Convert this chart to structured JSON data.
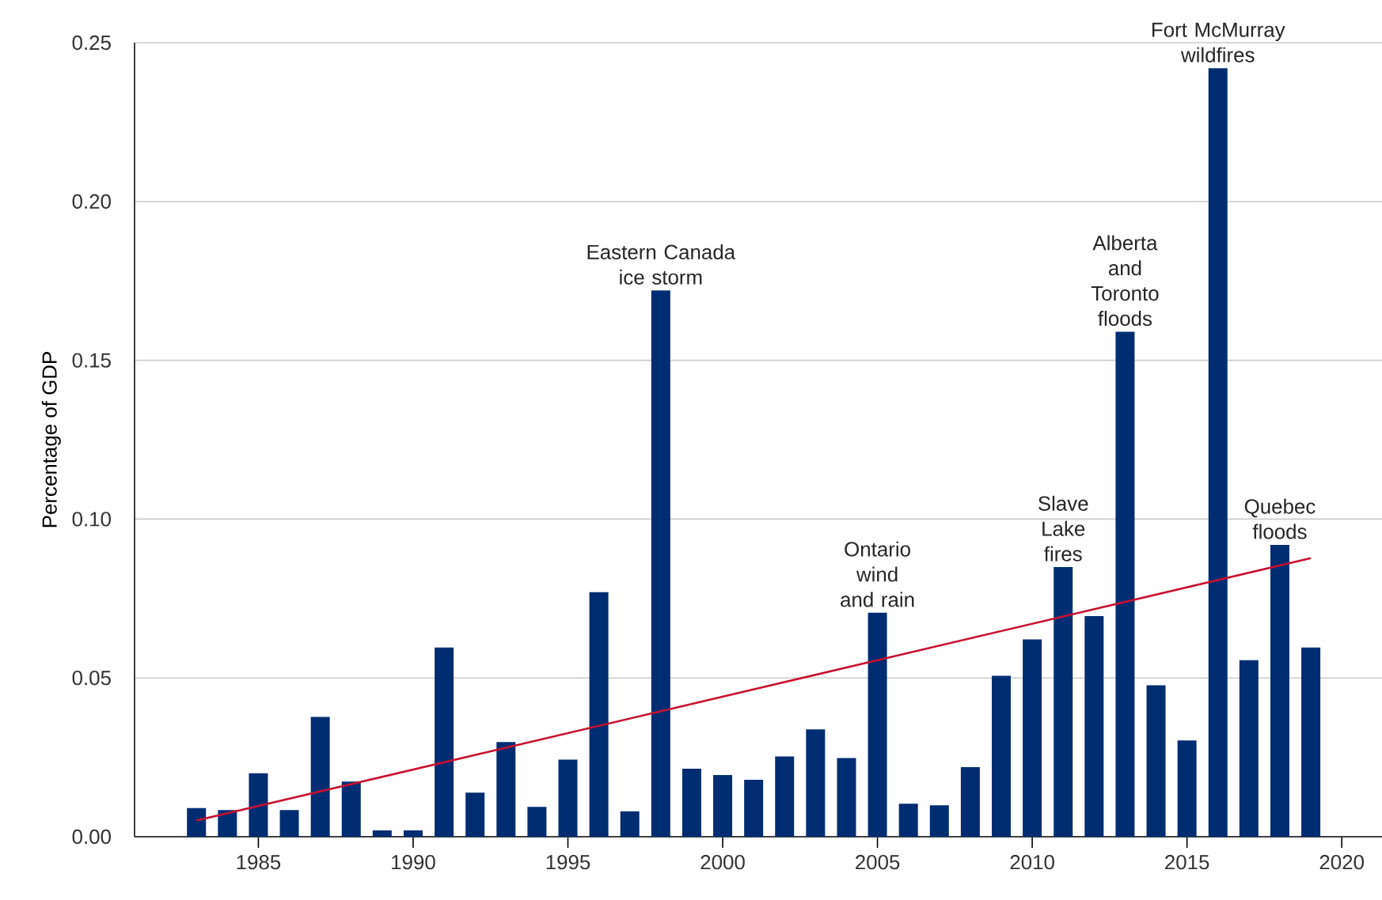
{
  "chart_data": {
    "type": "bar",
    "ylabel": "Percentage of GDP",
    "x": [
      1983,
      1984,
      1985,
      1986,
      1987,
      1988,
      1989,
      1990,
      1991,
      1992,
      1993,
      1994,
      1995,
      1996,
      1997,
      1998,
      1999,
      2000,
      2001,
      2002,
      2003,
      2004,
      2005,
      2006,
      2007,
      2008,
      2009,
      2010,
      2011,
      2012,
      2013,
      2014,
      2015,
      2016,
      2017,
      2018,
      2019
    ],
    "series": [
      {
        "color": "#002d72",
        "values": [
          0.009,
          0.0084,
          0.02,
          0.0084,
          0.0377,
          0.0174,
          0.002,
          0.002,
          0.0596,
          0.0139,
          0.0298,
          0.0094,
          0.0243,
          0.077,
          0.008,
          0.172,
          0.0214,
          0.0194,
          0.0179,
          0.0253,
          0.0338,
          0.0248,
          0.0705,
          0.0104,
          0.0099,
          0.0219,
          0.0507,
          0.0621,
          0.0849,
          0.0695,
          0.159,
          0.0477,
          0.0303,
          0.242,
          0.0556,
          0.0919,
          0.0596
        ]
      },
      {
        "type": "line",
        "color": "#c8102e",
        "x": [
          1983,
          2019
        ],
        "values": [
          0.0051,
          0.0877
        ]
      }
    ],
    "xlim": [
      1981,
      2021.3
    ],
    "xticks": [
      1985,
      1990,
      1995,
      2000,
      2005,
      2010,
      2015,
      2020
    ],
    "ylim": [
      0,
      0.25
    ],
    "yticks": [
      {
        "value": 0,
        "label": "0.00"
      },
      {
        "value": 0.05,
        "label": "0.05"
      },
      {
        "value": 0.1,
        "label": "0.10"
      },
      {
        "value": 0.15,
        "label": "0.15"
      },
      {
        "value": 0.2,
        "label": "0.20"
      },
      {
        "value": 0.25,
        "label": "0.25"
      }
    ],
    "grid": "y",
    "annotations": [
      {
        "text": "Eastern Canada ice storm",
        "x": 1998,
        "y": 0.172
      },
      {
        "text": "Ontario wind and rain",
        "x": 2005,
        "y": 0.0705
      },
      {
        "text": "Slave Lake fires",
        "x": 2011,
        "y": 0.0849
      },
      {
        "text": "Alberta and Toronto floods",
        "x": 2013,
        "y": 0.159
      },
      {
        "text": "Fort McMurray wildfires",
        "x": 2016,
        "y": 0.242
      },
      {
        "text": "Quebec floods",
        "x": 2018,
        "y": 0.0919
      }
    ]
  }
}
